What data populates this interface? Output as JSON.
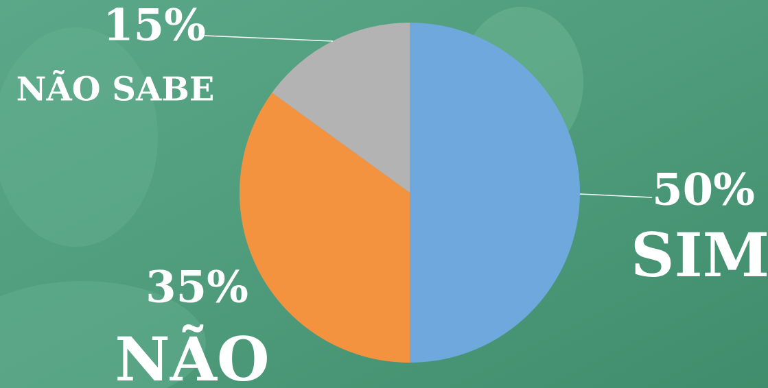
{
  "chart_data": {
    "type": "pie",
    "categories": [
      "SIM",
      "NÃO",
      "NÃO SABE"
    ],
    "values": [
      50,
      35,
      15
    ],
    "value_labels": [
      "50%",
      "35%",
      "15%"
    ],
    "colors": [
      "#6fa8dc",
      "#f39340",
      "#b3b3b3"
    ]
  }
}
